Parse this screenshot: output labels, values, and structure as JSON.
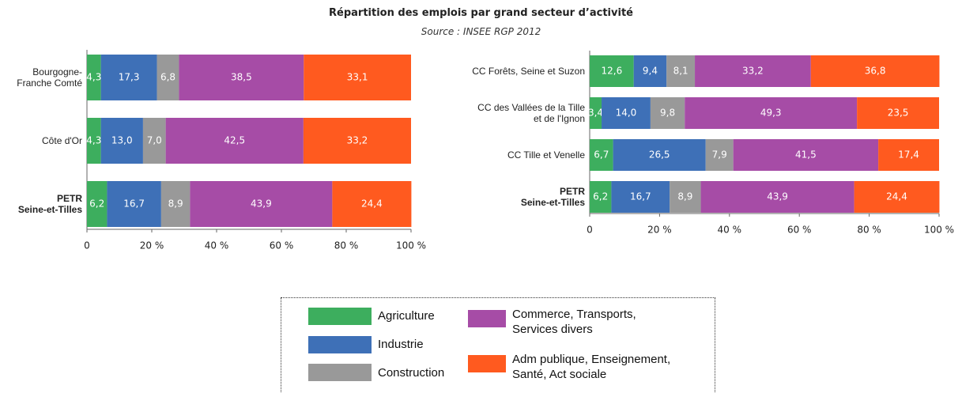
{
  "title": "Répartition des emplois par grand secteur d’activité",
  "subtitle": "Source : INSEE RGP 2012",
  "chart_data": [
    {
      "type": "bar",
      "orientation": "horizontal",
      "stacked": true,
      "categories": [
        "Bourgogne-\nFranche Comté",
        "Côte d'Or",
        "PETR\nSeine-et-Tilles"
      ],
      "series": [
        {
          "name": "Agriculture",
          "color": "#3dae5e",
          "values": [
            4.3,
            4.3,
            6.2
          ],
          "value_labels": [
            "4,3",
            "4,3",
            "6,2"
          ]
        },
        {
          "name": "Industrie",
          "color": "#3e70b7",
          "values": [
            17.3,
            13.0,
            16.7
          ],
          "value_labels": [
            "17,3",
            "13,0",
            "16,7"
          ]
        },
        {
          "name": "Construction",
          "color": "#999999",
          "values": [
            6.8,
            7.0,
            8.9
          ],
          "value_labels": [
            "6,8",
            "7,0",
            "8,9"
          ]
        },
        {
          "name": "Commerce, Transports,\nServices divers",
          "color": "#a64ca6",
          "values": [
            38.5,
            42.5,
            43.9
          ],
          "value_labels": [
            "38,5",
            "42,5",
            "43,9"
          ]
        },
        {
          "name": "Adm publique, Enseignement,\nSanté, Act sociale",
          "color": "#ff5a1f",
          "values": [
            33.1,
            33.2,
            24.4
          ],
          "value_labels": [
            "33,1",
            "33,2",
            "24,4"
          ]
        }
      ],
      "xlim": [
        0,
        100
      ],
      "xticks": [
        0,
        {
          "value": 20,
          "label": "20 %"
        },
        {
          "value": 40,
          "label": "40 %"
        },
        {
          "value": 60,
          "label": "60 %"
        },
        {
          "value": 80,
          "label": "80 %"
        },
        {
          "value": 100,
          "label": "100 %"
        }
      ]
    },
    {
      "type": "bar",
      "orientation": "horizontal",
      "stacked": true,
      "categories": [
        "CC Forêts, Seine et Suzon",
        "CC des Vallées de la Tille\net de l'Ignon",
        "CC Tille et Venelle",
        "PETR\nSeine-et-Tilles"
      ],
      "series": [
        {
          "color": "#3dae5e",
          "values": [
            12.6,
            3.4,
            6.7,
            6.2
          ],
          "value_labels": [
            "12,6",
            "3,4",
            "6,7",
            "6,2"
          ]
        },
        {
          "color": "#3e70b7",
          "values": [
            9.4,
            14.0,
            26.5,
            16.7
          ],
          "value_labels": [
            "9,4",
            "14,0",
            "26,5",
            "16,7"
          ]
        },
        {
          "color": "#999999",
          "values": [
            8.1,
            9.8,
            7.9,
            8.9
          ],
          "value_labels": [
            "8,1",
            "9,8",
            "7,9",
            "8,9"
          ]
        },
        {
          "color": "#a64ca6",
          "values": [
            33.2,
            49.3,
            41.5,
            43.9
          ],
          "value_labels": [
            "33,2",
            "49,3",
            "41,5",
            "43,9"
          ]
        },
        {
          "color": "#ff5a1f",
          "values": [
            36.8,
            23.5,
            17.4,
            24.4
          ],
          "value_labels": [
            "36,8",
            "23,5",
            "17,4",
            "24,4"
          ]
        }
      ],
      "xlim": [
        0,
        100
      ],
      "xticks": [
        0,
        {
          "value": 20,
          "label": "20 %"
        },
        {
          "value": 40,
          "label": "40 %"
        },
        {
          "value": 60,
          "label": "60 %"
        },
        {
          "value": 80,
          "label": "80 %"
        },
        {
          "value": 100,
          "label": "100 %"
        }
      ]
    }
  ]
}
